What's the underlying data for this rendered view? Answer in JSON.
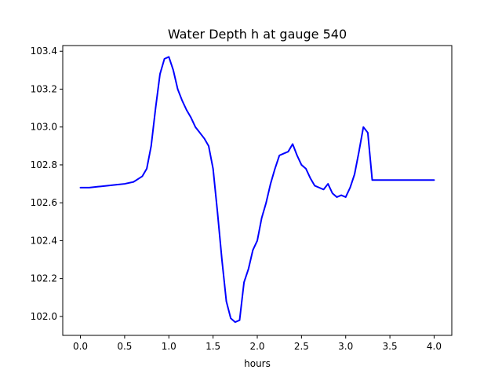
{
  "chart_data": {
    "type": "line",
    "title": "Water Depth h at gauge 540",
    "xlabel": "hours",
    "ylabel": "",
    "xlim": [
      -0.2,
      4.2
    ],
    "ylim": [
      101.9,
      103.43
    ],
    "xticks": [
      0.0,
      0.5,
      1.0,
      1.5,
      2.0,
      2.5,
      3.0,
      3.5,
      4.0
    ],
    "xtick_labels": [
      "0.0",
      "0.5",
      "1.0",
      "1.5",
      "2.0",
      "2.5",
      "3.0",
      "3.5",
      "4.0"
    ],
    "yticks": [
      102.0,
      102.2,
      102.4,
      102.6,
      102.8,
      103.0,
      103.2,
      103.4
    ],
    "ytick_labels": [
      "102.0",
      "102.2",
      "102.4",
      "102.6",
      "102.8",
      "103.0",
      "103.2",
      "103.4"
    ],
    "grid": false,
    "legend": "none",
    "series": [
      {
        "color": "#0000ff",
        "x": [
          0.0,
          0.1,
          0.2,
          0.3,
          0.4,
          0.5,
          0.6,
          0.65,
          0.7,
          0.75,
          0.8,
          0.85,
          0.9,
          0.95,
          1.0,
          1.05,
          1.1,
          1.15,
          1.2,
          1.25,
          1.3,
          1.35,
          1.4,
          1.45,
          1.5,
          1.55,
          1.6,
          1.65,
          1.7,
          1.75,
          1.8,
          1.85,
          1.9,
          1.95,
          2.0,
          2.05,
          2.1,
          2.15,
          2.2,
          2.25,
          2.3,
          2.35,
          2.4,
          2.45,
          2.5,
          2.55,
          2.6,
          2.65,
          2.7,
          2.75,
          2.8,
          2.85,
          2.9,
          2.95,
          3.0,
          3.05,
          3.1,
          3.15,
          3.2,
          3.25,
          3.3,
          3.35,
          3.4,
          3.45,
          3.5,
          3.55,
          3.6,
          3.65,
          3.7,
          3.75,
          3.8,
          3.85,
          3.9,
          3.95,
          4.0
        ],
        "y": [
          102.68,
          102.68,
          102.685,
          102.69,
          102.695,
          102.7,
          102.71,
          102.725,
          102.74,
          102.78,
          102.9,
          103.1,
          103.28,
          103.36,
          103.37,
          103.3,
          103.2,
          103.14,
          103.09,
          103.05,
          103.0,
          102.97,
          102.94,
          102.9,
          102.78,
          102.55,
          102.3,
          102.08,
          101.99,
          101.97,
          101.98,
          102.18,
          102.25,
          102.35,
          102.4,
          102.52,
          102.6,
          102.7,
          102.78,
          102.85,
          102.86,
          102.87,
          102.91,
          102.85,
          102.8,
          102.78,
          102.73,
          102.69,
          102.68,
          102.67,
          102.7,
          102.65,
          102.63,
          102.64,
          102.63,
          102.68,
          102.75,
          102.87,
          103.0,
          102.97,
          102.72,
          102.72,
          102.72,
          102.72,
          102.72,
          102.72,
          102.72,
          102.72,
          102.72,
          102.72,
          102.72,
          102.72,
          102.72,
          102.72,
          102.72
        ]
      }
    ]
  }
}
